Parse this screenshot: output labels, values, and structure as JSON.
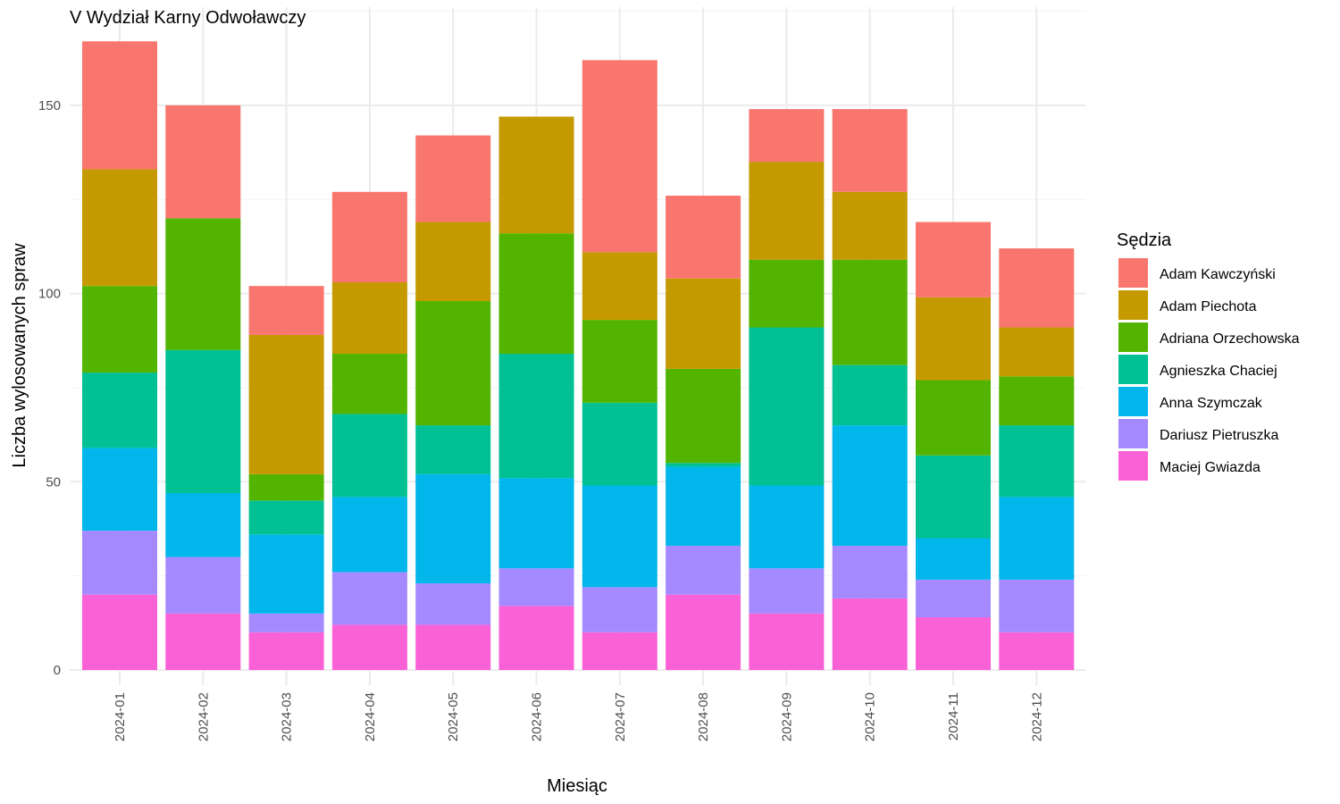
{
  "chart_data": {
    "type": "bar",
    "stacked": true,
    "title": "V Wydział Karny Odwoławczy",
    "xlabel": "Miesiąc",
    "ylabel": "Liczba wylosowanych spraw",
    "ylim": [
      0,
      168
    ],
    "yticks": [
      0,
      50,
      100,
      150
    ],
    "grid": true,
    "legend": {
      "title": "Sędzia",
      "position": "right"
    },
    "categories": [
      "2024-01",
      "2024-02",
      "2024-03",
      "2024-04",
      "2024-05",
      "2024-06",
      "2024-07",
      "2024-08",
      "2024-09",
      "2024-10",
      "2024-11",
      "2024-12"
    ],
    "series": [
      {
        "name": "Adam Kawczyński",
        "color": "#F8766D",
        "values": [
          34,
          30,
          13,
          24,
          23,
          0,
          51,
          22,
          14,
          22,
          20,
          21
        ]
      },
      {
        "name": "Adam Piechota",
        "color": "#C49A00",
        "values": [
          31,
          0,
          37,
          19,
          21,
          31,
          18,
          24,
          26,
          18,
          22,
          13
        ]
      },
      {
        "name": "Adriana Orzechowska",
        "color": "#53B400",
        "values": [
          23,
          35,
          7,
          16,
          33,
          32,
          22,
          25,
          18,
          28,
          20,
          13
        ]
      },
      {
        "name": "Agnieszka Chaciej",
        "color": "#00C094",
        "values": [
          20,
          38,
          9,
          22,
          13,
          33,
          22,
          1,
          42,
          16,
          22,
          19
        ]
      },
      {
        "name": "Anna Szymczak",
        "color": "#00B6EB",
        "values": [
          22,
          17,
          21,
          20,
          29,
          24,
          27,
          21,
          22,
          32,
          11,
          22
        ]
      },
      {
        "name": "Dariusz Pietruszka",
        "color": "#A58AFF",
        "values": [
          17,
          15,
          5,
          14,
          11,
          10,
          12,
          13,
          12,
          14,
          10,
          14
        ]
      },
      {
        "name": "Maciej Gwiazda",
        "color": "#FB61D7",
        "values": [
          20,
          15,
          10,
          12,
          12,
          17,
          10,
          20,
          15,
          19,
          14,
          10
        ]
      }
    ]
  }
}
